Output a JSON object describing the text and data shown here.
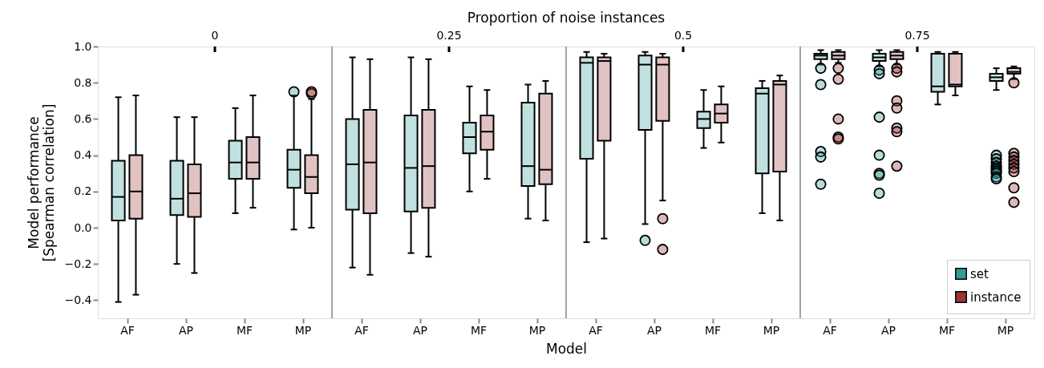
{
  "chart_data": {
    "type": "box",
    "xlabel": "Model",
    "ylabel": "Model performance\n[Spearman correlation]",
    "x2label": "Proportion of noise instances",
    "annotations": [
      "0",
      "0.25",
      "0.5",
      "0.75"
    ],
    "categories": [
      "AF",
      "AP",
      "MF",
      "MP",
      "AF",
      "AP",
      "MF",
      "MP",
      "AF",
      "AP",
      "MF",
      "MP",
      "AF",
      "AP",
      "MF",
      "MP"
    ],
    "ylim": [
      -0.5,
      1.0
    ],
    "yticks": [
      {
        "value": -0.4,
        "label": "−0.4"
      },
      {
        "value": -0.2,
        "label": "−0.2"
      },
      {
        "value": 0,
        "label": "0.0"
      },
      0.2,
      0.4,
      0.6,
      0.8,
      {
        "value": 1,
        "label": "1.0"
      }
    ],
    "grid": false,
    "legend": "bottom right",
    "series": [
      {
        "name": "set",
        "color": "#339a98",
        "boxes": [
          {
            "low": -0.41,
            "q1": 0.04,
            "median": 0.17,
            "q3": 0.37,
            "high": 0.72
          },
          {
            "low": -0.2,
            "q1": 0.07,
            "median": 0.16,
            "q3": 0.37,
            "high": 0.61
          },
          {
            "low": 0.08,
            "q1": 0.27,
            "median": 0.36,
            "q3": 0.48,
            "high": 0.66
          },
          {
            "low": -0.01,
            "q1": 0.22,
            "median": 0.32,
            "q3": 0.43,
            "high": 0.73,
            "outliers": [
              0.75
            ]
          },
          {
            "low": -0.22,
            "q1": 0.1,
            "median": 0.35,
            "q3": 0.6,
            "high": 0.94
          },
          {
            "low": -0.14,
            "q1": 0.09,
            "median": 0.33,
            "q3": 0.62,
            "high": 0.94
          },
          {
            "low": 0.2,
            "q1": 0.41,
            "median": 0.5,
            "q3": 0.58,
            "high": 0.78
          },
          {
            "low": 0.05,
            "q1": 0.23,
            "median": 0.34,
            "q3": 0.69,
            "high": 0.79
          },
          {
            "low": -0.08,
            "q1": 0.38,
            "median": 0.91,
            "q3": 0.94,
            "high": 0.97
          },
          {
            "low": 0.02,
            "q1": 0.54,
            "median": 0.9,
            "q3": 0.95,
            "high": 0.97,
            "outliers": [
              -0.07
            ]
          },
          {
            "low": 0.44,
            "q1": 0.55,
            "median": 0.6,
            "q3": 0.64,
            "high": 0.76
          },
          {
            "low": 0.08,
            "q1": 0.3,
            "median": 0.74,
            "q3": 0.77,
            "high": 0.81
          },
          {
            "low": 0.9,
            "q1": 0.93,
            "median": 0.95,
            "q3": 0.96,
            "high": 0.98,
            "outliers": [
              0.88,
              0.79,
              0.42,
              0.39,
              0.24
            ]
          },
          {
            "low": 0.89,
            "q1": 0.92,
            "median": 0.94,
            "q3": 0.96,
            "high": 0.98,
            "outliers": [
              0.87,
              0.85,
              0.61,
              0.4,
              0.3,
              0.29,
              0.19
            ]
          },
          {
            "low": 0.68,
            "q1": 0.75,
            "median": 0.78,
            "q3": 0.96,
            "high": 0.97
          },
          {
            "low": 0.76,
            "q1": 0.81,
            "median": 0.83,
            "q3": 0.85,
            "high": 0.88,
            "outliers": [
              0.4,
              0.38,
              0.36,
              0.34,
              0.33,
              0.32,
              0.31,
              0.3,
              0.28,
              0.27
            ]
          }
        ]
      },
      {
        "name": "instance",
        "color": "#9b3434",
        "boxes": [
          {
            "low": -0.37,
            "q1": 0.05,
            "median": 0.2,
            "q3": 0.4,
            "high": 0.73
          },
          {
            "low": -0.25,
            "q1": 0.06,
            "median": 0.19,
            "q3": 0.35,
            "high": 0.61
          },
          {
            "low": 0.11,
            "q1": 0.27,
            "median": 0.36,
            "q3": 0.5,
            "high": 0.73
          },
          {
            "low": 0.0,
            "q1": 0.19,
            "median": 0.28,
            "q3": 0.4,
            "high": 0.71,
            "outliers": [
              0.74,
              0.75
            ]
          },
          {
            "low": -0.26,
            "q1": 0.08,
            "median": 0.36,
            "q3": 0.65,
            "high": 0.93
          },
          {
            "low": -0.16,
            "q1": 0.11,
            "median": 0.34,
            "q3": 0.65,
            "high": 0.93
          },
          {
            "low": 0.27,
            "q1": 0.43,
            "median": 0.53,
            "q3": 0.62,
            "high": 0.76
          },
          {
            "low": 0.04,
            "q1": 0.24,
            "median": 0.32,
            "q3": 0.74,
            "high": 0.81
          },
          {
            "low": -0.06,
            "q1": 0.48,
            "median": 0.92,
            "q3": 0.94,
            "high": 0.96
          },
          {
            "low": 0.15,
            "q1": 0.59,
            "median": 0.9,
            "q3": 0.94,
            "high": 0.96,
            "outliers": [
              0.05,
              -0.12
            ]
          },
          {
            "low": 0.47,
            "q1": 0.58,
            "median": 0.63,
            "q3": 0.68,
            "high": 0.78
          },
          {
            "low": 0.04,
            "q1": 0.31,
            "median": 0.79,
            "q3": 0.81,
            "high": 0.84
          },
          {
            "low": 0.91,
            "q1": 0.93,
            "median": 0.95,
            "q3": 0.97,
            "high": 0.98,
            "outliers": [
              0.88,
              0.82,
              0.6,
              0.5,
              0.49
            ]
          },
          {
            "low": 0.9,
            "q1": 0.93,
            "median": 0.95,
            "q3": 0.97,
            "high": 0.98,
            "outliers": [
              0.88,
              0.86,
              0.7,
              0.66,
              0.55,
              0.53,
              0.34
            ]
          },
          {
            "low": 0.73,
            "q1": 0.78,
            "median": 0.79,
            "q3": 0.96,
            "high": 0.97
          },
          {
            "low": 0.82,
            "q1": 0.85,
            "median": 0.86,
            "q3": 0.88,
            "high": 0.89,
            "outliers": [
              0.8,
              0.41,
              0.39,
              0.37,
              0.35,
              0.33,
              0.31,
              0.22,
              0.14
            ]
          }
        ]
      }
    ]
  }
}
